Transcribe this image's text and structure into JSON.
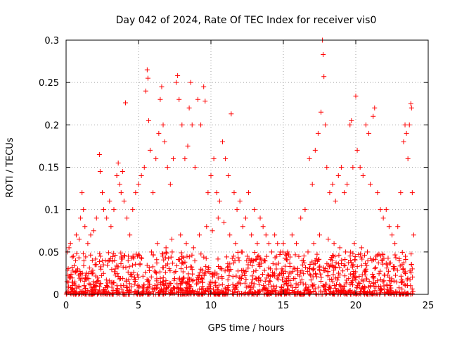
{
  "chart_data": {
    "type": "scatter",
    "title": "Day 042 of 2024, Rate Of TEC Index for receiver vis0",
    "xlabel": "GPS time / hours",
    "ylabel": "ROTI / TECUs",
    "xlim": [
      0,
      25
    ],
    "ylim": [
      0,
      0.3
    ],
    "x_ticks": [
      0,
      5,
      10,
      15,
      20,
      25
    ],
    "y_ticks": [
      0,
      0.05,
      0.1,
      0.15,
      0.2,
      0.25,
      0.3
    ],
    "x_tick_labels": [
      "0",
      "5",
      "10",
      "15",
      "20",
      "25"
    ],
    "y_tick_labels": [
      "0",
      "0.05",
      "0.1",
      "0.15",
      "0.2",
      "0.25",
      "0.3"
    ],
    "grid": true,
    "marker": "+",
    "color": "#ff0000",
    "series": [
      {
        "name": "ROTI",
        "points": [
          [
            0.1,
            0.05
          ],
          [
            0.2,
            0.055
          ],
          [
            0.3,
            0.06
          ],
          [
            0.5,
            0.045
          ],
          [
            0.7,
            0.07
          ],
          [
            0.9,
            0.065
          ],
          [
            1.0,
            0.09
          ],
          [
            1.1,
            0.12
          ],
          [
            1.2,
            0.1
          ],
          [
            1.3,
            0.08
          ],
          [
            1.5,
            0.06
          ],
          [
            1.7,
            0.07
          ],
          [
            1.9,
            0.075
          ],
          [
            2.1,
            0.09
          ],
          [
            2.3,
            0.165
          ],
          [
            2.35,
            0.145
          ],
          [
            2.5,
            0.12
          ],
          [
            2.6,
            0.1
          ],
          [
            2.8,
            0.09
          ],
          [
            3.0,
            0.11
          ],
          [
            3.1,
            0.08
          ],
          [
            3.3,
            0.1
          ],
          [
            3.5,
            0.14
          ],
          [
            3.6,
            0.155
          ],
          [
            3.7,
            0.13
          ],
          [
            3.8,
            0.12
          ],
          [
            3.9,
            0.145
          ],
          [
            4.0,
            0.11
          ],
          [
            4.1,
            0.226
          ],
          [
            4.2,
            0.09
          ],
          [
            4.4,
            0.07
          ],
          [
            4.6,
            0.1
          ],
          [
            4.8,
            0.12
          ],
          [
            5.0,
            0.13
          ],
          [
            5.2,
            0.14
          ],
          [
            5.4,
            0.15
          ],
          [
            5.5,
            0.24
          ],
          [
            5.6,
            0.265
          ],
          [
            5.65,
            0.255
          ],
          [
            5.7,
            0.205
          ],
          [
            5.8,
            0.17
          ],
          [
            6.0,
            0.12
          ],
          [
            6.2,
            0.16
          ],
          [
            6.4,
            0.19
          ],
          [
            6.5,
            0.23
          ],
          [
            6.6,
            0.245
          ],
          [
            6.7,
            0.2
          ],
          [
            6.8,
            0.18
          ],
          [
            7.0,
            0.15
          ],
          [
            7.2,
            0.13
          ],
          [
            7.4,
            0.16
          ],
          [
            7.6,
            0.25
          ],
          [
            7.7,
            0.258
          ],
          [
            7.8,
            0.23
          ],
          [
            8.0,
            0.2
          ],
          [
            8.2,
            0.16
          ],
          [
            8.4,
            0.175
          ],
          [
            8.5,
            0.22
          ],
          [
            8.6,
            0.25
          ],
          [
            8.7,
            0.2
          ],
          [
            8.9,
            0.15
          ],
          [
            9.1,
            0.23
          ],
          [
            9.3,
            0.2
          ],
          [
            9.5,
            0.245
          ],
          [
            9.6,
            0.228
          ],
          [
            9.8,
            0.12
          ],
          [
            10.0,
            0.14
          ],
          [
            10.2,
            0.16
          ],
          [
            10.4,
            0.12
          ],
          [
            10.6,
            0.11
          ],
          [
            10.8,
            0.18
          ],
          [
            11.0,
            0.16
          ],
          [
            11.2,
            0.14
          ],
          [
            11.4,
            0.213
          ],
          [
            11.6,
            0.12
          ],
          [
            11.8,
            0.1
          ],
          [
            12.0,
            0.11
          ],
          [
            12.2,
            0.08
          ],
          [
            12.4,
            0.09
          ],
          [
            12.6,
            0.12
          ],
          [
            12.8,
            0.07
          ],
          [
            13.0,
            0.1
          ],
          [
            13.2,
            0.06
          ],
          [
            13.4,
            0.09
          ],
          [
            13.6,
            0.08
          ],
          [
            13.8,
            0.07
          ],
          [
            14.0,
            0.06
          ],
          [
            14.2,
            0.05
          ],
          [
            14.4,
            0.07
          ],
          [
            14.6,
            0.06
          ],
          [
            14.8,
            0.05
          ],
          [
            15.0,
            0.06
          ],
          [
            15.3,
            0.05
          ],
          [
            15.6,
            0.07
          ],
          [
            15.9,
            0.06
          ],
          [
            16.2,
            0.09
          ],
          [
            16.5,
            0.1
          ],
          [
            16.8,
            0.16
          ],
          [
            17.0,
            0.13
          ],
          [
            17.2,
            0.17
          ],
          [
            17.4,
            0.19
          ],
          [
            17.6,
            0.215
          ],
          [
            17.7,
            0.3
          ],
          [
            17.75,
            0.283
          ],
          [
            17.8,
            0.257
          ],
          [
            17.9,
            0.2
          ],
          [
            18.0,
            0.15
          ],
          [
            18.2,
            0.12
          ],
          [
            18.4,
            0.13
          ],
          [
            18.6,
            0.11
          ],
          [
            18.8,
            0.14
          ],
          [
            19.0,
            0.15
          ],
          [
            19.2,
            0.12
          ],
          [
            19.4,
            0.13
          ],
          [
            19.6,
            0.2
          ],
          [
            19.7,
            0.205
          ],
          [
            19.8,
            0.15
          ],
          [
            20.0,
            0.234
          ],
          [
            20.1,
            0.17
          ],
          [
            20.3,
            0.15
          ],
          [
            20.5,
            0.14
          ],
          [
            20.7,
            0.2
          ],
          [
            20.9,
            0.19
          ],
          [
            21.0,
            0.13
          ],
          [
            21.2,
            0.21
          ],
          [
            21.3,
            0.22
          ],
          [
            21.5,
            0.12
          ],
          [
            21.7,
            0.1
          ],
          [
            21.9,
            0.09
          ],
          [
            22.1,
            0.1
          ],
          [
            22.3,
            0.08
          ],
          [
            22.5,
            0.07
          ],
          [
            22.7,
            0.06
          ],
          [
            22.9,
            0.08
          ],
          [
            23.1,
            0.12
          ],
          [
            23.3,
            0.18
          ],
          [
            23.4,
            0.2
          ],
          [
            23.5,
            0.19
          ],
          [
            23.6,
            0.16
          ],
          [
            23.7,
            0.2
          ],
          [
            23.8,
            0.225
          ],
          [
            23.85,
            0.22
          ],
          [
            23.9,
            0.12
          ],
          [
            24.0,
            0.07
          ],
          [
            0.3,
            0.02
          ],
          [
            0.8,
            0.03
          ],
          [
            1.4,
            0.025
          ],
          [
            2.0,
            0.035
          ],
          [
            2.7,
            0.04
          ],
          [
            3.4,
            0.03
          ],
          [
            4.3,
            0.045
          ],
          [
            5.1,
            0.035
          ],
          [
            5.9,
            0.05
          ],
          [
            6.3,
            0.06
          ],
          [
            6.9,
            0.055
          ],
          [
            7.3,
            0.065
          ],
          [
            7.9,
            0.07
          ],
          [
            8.3,
            0.06
          ],
          [
            8.8,
            0.055
          ],
          [
            9.2,
            0.07
          ],
          [
            9.7,
            0.08
          ],
          [
            10.1,
            0.075
          ],
          [
            10.5,
            0.09
          ],
          [
            10.9,
            0.085
          ],
          [
            11.3,
            0.07
          ],
          [
            11.7,
            0.06
          ],
          [
            12.1,
            0.05
          ],
          [
            12.5,
            0.045
          ],
          [
            12.9,
            0.04
          ],
          [
            13.3,
            0.035
          ],
          [
            13.7,
            0.04
          ],
          [
            14.1,
            0.03
          ],
          [
            14.5,
            0.035
          ],
          [
            14.9,
            0.03
          ],
          [
            15.4,
            0.025
          ],
          [
            15.8,
            0.03
          ],
          [
            16.3,
            0.04
          ],
          [
            16.7,
            0.05
          ],
          [
            17.1,
            0.06
          ],
          [
            17.5,
            0.07
          ],
          [
            18.1,
            0.065
          ],
          [
            18.5,
            0.06
          ],
          [
            18.9,
            0.055
          ],
          [
            19.3,
            0.05
          ],
          [
            19.9,
            0.06
          ],
          [
            20.4,
            0.055
          ],
          [
            20.8,
            0.05
          ],
          [
            21.4,
            0.045
          ],
          [
            21.8,
            0.04
          ],
          [
            22.2,
            0.035
          ],
          [
            22.6,
            0.03
          ],
          [
            23.0,
            0.04
          ],
          [
            23.2,
            0.035
          ],
          [
            23.9,
            0.03
          ]
        ]
      }
    ]
  }
}
